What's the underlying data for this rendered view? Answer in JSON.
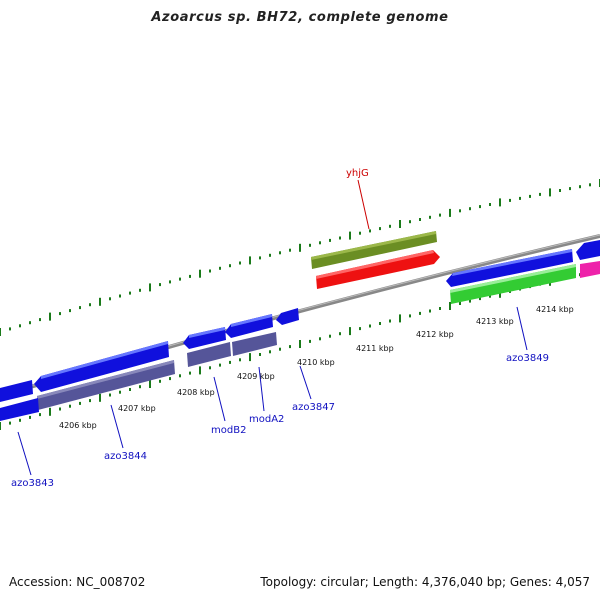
{
  "header": {
    "title": "Azoarcus sp. BH72, complete genome"
  },
  "footer": {
    "accession": "Accession: NC_008702",
    "summary": "Topology: circular; Length: 4,376,040 bp; Genes: 4,057"
  },
  "colors": {
    "backbone": "#888888",
    "tick": "#1a7a1a",
    "cds_forward": "#1010dd",
    "cds_reverse": "#1010dd",
    "cds_purple": "#555599",
    "cds_olive": "#6b8e23",
    "cds_red": "#ee1111",
    "cds_green": "#33cc33",
    "cds_magenta": "#ee22aa",
    "label_blue": "#1010c0",
    "label_red": "#cc0000"
  },
  "scale_labels": [
    "4206 kbp",
    "4207 kbp",
    "4208 kbp",
    "4209 kbp",
    "4210 kbp",
    "4211 kbp",
    "4212 kbp",
    "4213 kbp",
    "4214 kbp"
  ],
  "gene_labels": {
    "yhjG": "yhjG",
    "azo3849": "azo3849",
    "azo3847": "azo3847",
    "modA2": "modA2",
    "modB2": "modB2",
    "azo3844": "azo3844",
    "azo3843": "azo3843"
  }
}
